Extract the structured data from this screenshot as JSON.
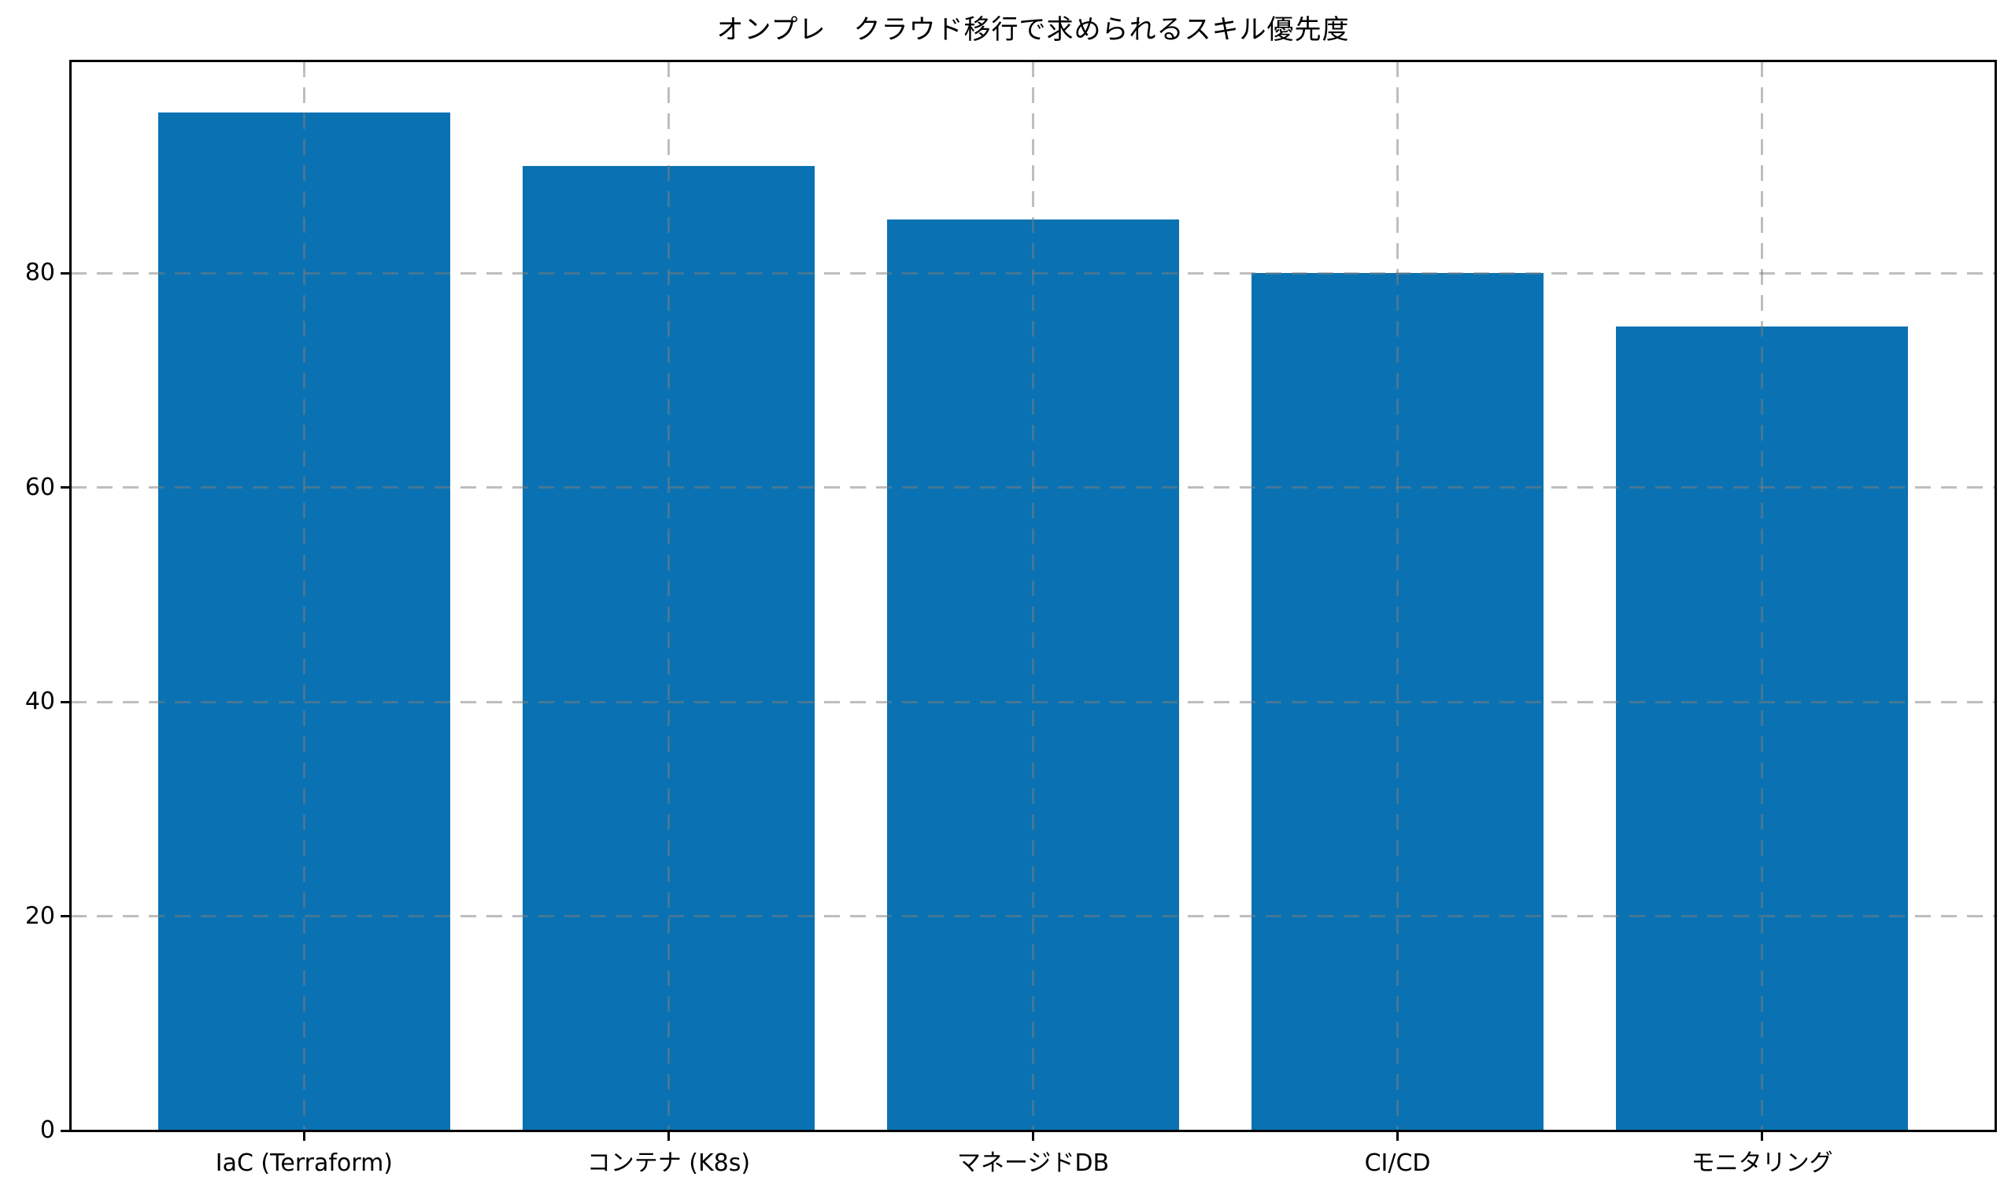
{
  "chart_data": {
    "type": "bar",
    "title": "オンプレ　クラウド移行で求められるスキル優先度",
    "categories": [
      "IaC (Terraform)",
      "コンテナ (K8s)",
      "マネージドDB",
      "CI/CD",
      "モニタリング"
    ],
    "values": [
      95,
      90,
      85,
      80,
      75
    ],
    "xlabel": "",
    "ylabel": "",
    "yticks": [
      0,
      20,
      40,
      60,
      80
    ],
    "ylim": [
      0,
      99.75
    ],
    "bar_color": "#0a72b2",
    "axis_color": "#000000",
    "grid_color_rgba": "rgba(125,125,125,0.5)",
    "grid_style": "dashed",
    "grid_axes": "both",
    "legend": "none",
    "background_color": "#ffffff"
  }
}
